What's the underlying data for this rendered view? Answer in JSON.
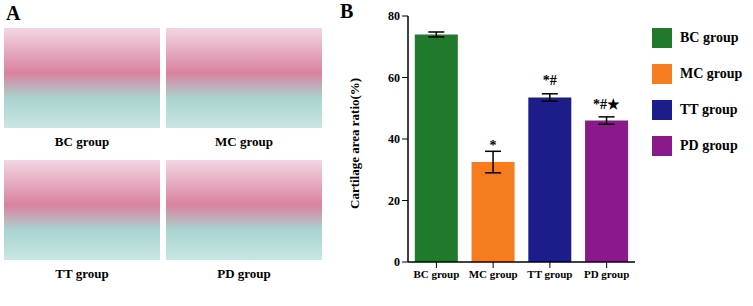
{
  "panel_a": {
    "label": "A",
    "images": [
      "BC group",
      "MC group",
      "TT group",
      "PD group"
    ]
  },
  "chart_data": {
    "type": "bar",
    "title": "B",
    "categories": [
      "BC group",
      "MC group",
      "TT group",
      "PD group"
    ],
    "values": [
      74,
      32.5,
      53.5,
      46
    ],
    "errors": [
      0.8,
      3.5,
      1.2,
      1.2
    ],
    "significance": [
      null,
      "*",
      "*#",
      "*#★"
    ],
    "colors": [
      "#1f7a2c",
      "#f57c1f",
      "#1c1c8a",
      "#8a1a8a"
    ],
    "ylabel": "Cartilage area ratio(%)",
    "ylim": [
      0,
      80
    ],
    "yticks": [
      0,
      20,
      40,
      60,
      80
    ],
    "legend": "right"
  }
}
